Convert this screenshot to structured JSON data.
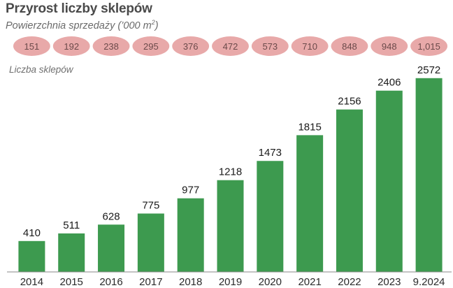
{
  "title": "Przyrost liczby sklepów",
  "subtitle_main": "Powierzchnia sprzedaży (’000 m",
  "subtitle_sup": "2",
  "subtitle_end": ")",
  "series_label": "Liczba sklepów",
  "colors": {
    "bar": "#3d9a4f",
    "pill": "#e8a9a9",
    "axis": "#8a8a8a"
  },
  "chart_data": {
    "type": "bar",
    "title": "Przyrost liczby sklepów",
    "categories": [
      "2014",
      "2015",
      "2016",
      "2017",
      "2018",
      "2019",
      "2020",
      "2021",
      "2022",
      "2023",
      "9.2024"
    ],
    "series": [
      {
        "name": "Liczba sklepów",
        "values": [
          410,
          511,
          628,
          775,
          977,
          1218,
          1473,
          1815,
          2156,
          2406,
          2572
        ]
      }
    ],
    "secondary_row": {
      "name": "Powierzchnia sprzedaży (’000 m2)",
      "labels": [
        "151",
        "192",
        "238",
        "295",
        "376",
        "472",
        "573",
        "710",
        "848",
        "948",
        "1,015"
      ]
    },
    "ylim": [
      0,
      2700
    ],
    "xlabel": "",
    "ylabel": "Liczba sklepów"
  }
}
